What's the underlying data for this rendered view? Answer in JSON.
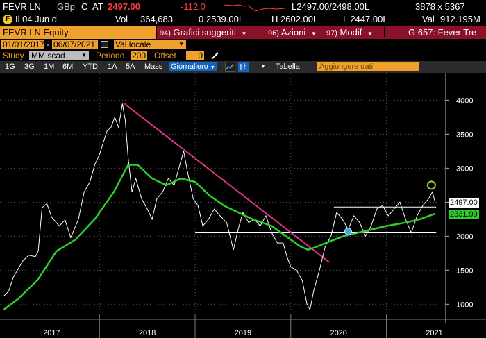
{
  "quote": {
    "ticker": "FEVR LN",
    "currency": "GBp",
    "flag": "C",
    "exchange": "AT",
    "last": "2497.00",
    "change": "-112.0",
    "bid_ask": "L2497.00/2498.00L",
    "size": "3878 x 5367",
    "open": "0 2539.00L",
    "high": "H 2602.00L",
    "low": "L 2447.00L",
    "flag_icon": "F",
    "info": "Il 04 Jun d",
    "volume_label": "Vol",
    "volume": "364,683",
    "val_label": "Val",
    "val": "912.195M"
  },
  "command": {
    "ticker_input": "FEVR LN Equity",
    "menu": [
      {
        "num": "94)",
        "label": "Grafici suggeriti"
      },
      {
        "num": "96)",
        "label": "Azioni"
      },
      {
        "num": "97)",
        "label": "Modif"
      },
      {
        "num": "",
        "label": "G 657: Fever Tre"
      }
    ]
  },
  "range": {
    "start": "01/01/2017",
    "end": "06/07/2021",
    "currency_select": "Val locale"
  },
  "study": {
    "label": "Study",
    "study_select": "MM scad",
    "period_label": "Periodo",
    "period_value": "200",
    "offset_label": "Offset",
    "offset_value": "0"
  },
  "toolbar": {
    "periods": [
      "1G",
      "3G",
      "1M",
      "6M",
      "YTD",
      "1A",
      "5A",
      "Mass"
    ],
    "frequency": "Giornaliero",
    "table_label": "Tabella",
    "add_data_placeholder": "Aggiungere dati"
  },
  "chart_data": {
    "type": "line",
    "y_ticks": [
      "4000",
      "3500",
      "3000",
      "2500",
      "2000",
      "1500",
      "1000"
    ],
    "x_ticks": [
      "2017",
      "2018",
      "2019",
      "2020",
      "2021"
    ],
    "ylim": [
      850,
      4300
    ],
    "last_price_label": "2497.00",
    "ma_label": "2331.99",
    "colors": {
      "price": "#ffffff",
      "ma": "#2dcf2d",
      "trendline": "#e0338c",
      "marker": "#9ad23a",
      "circle": "#4aa3df"
    },
    "price": [
      {
        "t": 2017.0,
        "v": 1120
      },
      {
        "t": 2017.05,
        "v": 1190
      },
      {
        "t": 2017.1,
        "v": 1400
      },
      {
        "t": 2017.15,
        "v": 1520
      },
      {
        "t": 2017.2,
        "v": 1640
      },
      {
        "t": 2017.26,
        "v": 1720
      },
      {
        "t": 2017.33,
        "v": 1700
      },
      {
        "t": 2017.36,
        "v": 1780
      },
      {
        "t": 2017.4,
        "v": 2420
      },
      {
        "t": 2017.45,
        "v": 2480
      },
      {
        "t": 2017.5,
        "v": 2280
      },
      {
        "t": 2017.58,
        "v": 2150
      },
      {
        "t": 2017.64,
        "v": 2240
      },
      {
        "t": 2017.7,
        "v": 1980
      },
      {
        "t": 2017.78,
        "v": 2250
      },
      {
        "t": 2017.84,
        "v": 2650
      },
      {
        "t": 2017.9,
        "v": 2800
      },
      {
        "t": 2017.95,
        "v": 3050
      },
      {
        "t": 2018.0,
        "v": 3200
      },
      {
        "t": 2018.04,
        "v": 3380
      },
      {
        "t": 2018.08,
        "v": 3550
      },
      {
        "t": 2018.12,
        "v": 3600
      },
      {
        "t": 2018.16,
        "v": 3750
      },
      {
        "t": 2018.2,
        "v": 3600
      },
      {
        "t": 2018.24,
        "v": 3950
      },
      {
        "t": 2018.27,
        "v": 3700
      },
      {
        "t": 2018.3,
        "v": 3150
      },
      {
        "t": 2018.34,
        "v": 2650
      },
      {
        "t": 2018.38,
        "v": 2850
      },
      {
        "t": 2018.44,
        "v": 2550
      },
      {
        "t": 2018.5,
        "v": 2400
      },
      {
        "t": 2018.55,
        "v": 2250
      },
      {
        "t": 2018.6,
        "v": 2550
      },
      {
        "t": 2018.66,
        "v": 2650
      },
      {
        "t": 2018.72,
        "v": 2850
      },
      {
        "t": 2018.78,
        "v": 2750
      },
      {
        "t": 2018.84,
        "v": 3050
      },
      {
        "t": 2018.88,
        "v": 3250
      },
      {
        "t": 2018.92,
        "v": 2950
      },
      {
        "t": 2018.98,
        "v": 2550
      },
      {
        "t": 2019.03,
        "v": 2450
      },
      {
        "t": 2019.08,
        "v": 2150
      },
      {
        "t": 2019.14,
        "v": 2250
      },
      {
        "t": 2019.2,
        "v": 2400
      },
      {
        "t": 2019.26,
        "v": 2300
      },
      {
        "t": 2019.33,
        "v": 2200
      },
      {
        "t": 2019.4,
        "v": 1800
      },
      {
        "t": 2019.45,
        "v": 2100
      },
      {
        "t": 2019.5,
        "v": 2350
      },
      {
        "t": 2019.56,
        "v": 2200
      },
      {
        "t": 2019.62,
        "v": 2250
      },
      {
        "t": 2019.68,
        "v": 2150
      },
      {
        "t": 2019.74,
        "v": 2300
      },
      {
        "t": 2019.8,
        "v": 2050
      },
      {
        "t": 2019.86,
        "v": 1900
      },
      {
        "t": 2019.92,
        "v": 1900
      },
      {
        "t": 2019.96,
        "v": 1700
      },
      {
        "t": 2020.0,
        "v": 1550
      },
      {
        "t": 2020.06,
        "v": 1500
      },
      {
        "t": 2020.12,
        "v": 1350
      },
      {
        "t": 2020.17,
        "v": 1000
      },
      {
        "t": 2020.2,
        "v": 920
      },
      {
        "t": 2020.24,
        "v": 1200
      },
      {
        "t": 2020.3,
        "v": 1500
      },
      {
        "t": 2020.36,
        "v": 1850
      },
      {
        "t": 2020.42,
        "v": 2000
      },
      {
        "t": 2020.48,
        "v": 2350
      },
      {
        "t": 2020.54,
        "v": 2250
      },
      {
        "t": 2020.6,
        "v": 2100
      },
      {
        "t": 2020.66,
        "v": 2300
      },
      {
        "t": 2020.72,
        "v": 2200
      },
      {
        "t": 2020.78,
        "v": 2000
      },
      {
        "t": 2020.84,
        "v": 2150
      },
      {
        "t": 2020.9,
        "v": 2400
      },
      {
        "t": 2020.96,
        "v": 2450
      },
      {
        "t": 2021.02,
        "v": 2300
      },
      {
        "t": 2021.08,
        "v": 2400
      },
      {
        "t": 2021.14,
        "v": 2500
      },
      {
        "t": 2021.2,
        "v": 2250
      },
      {
        "t": 2021.26,
        "v": 2050
      },
      {
        "t": 2021.32,
        "v": 2300
      },
      {
        "t": 2021.38,
        "v": 2450
      },
      {
        "t": 2021.44,
        "v": 2550
      },
      {
        "t": 2021.48,
        "v": 2650
      },
      {
        "t": 2021.51,
        "v": 2497
      }
    ],
    "ma": [
      {
        "t": 2017.0,
        "v": 920
      },
      {
        "t": 2017.15,
        "v": 1080
      },
      {
        "t": 2017.35,
        "v": 1350
      },
      {
        "t": 2017.55,
        "v": 1780
      },
      {
        "t": 2017.75,
        "v": 1950
      },
      {
        "t": 2017.95,
        "v": 2250
      },
      {
        "t": 2018.15,
        "v": 2650
      },
      {
        "t": 2018.3,
        "v": 3050
      },
      {
        "t": 2018.4,
        "v": 3050
      },
      {
        "t": 2018.55,
        "v": 2850
      },
      {
        "t": 2018.7,
        "v": 2750
      },
      {
        "t": 2018.85,
        "v": 2850
      },
      {
        "t": 2019.0,
        "v": 2800
      },
      {
        "t": 2019.15,
        "v": 2600
      },
      {
        "t": 2019.3,
        "v": 2450
      },
      {
        "t": 2019.45,
        "v": 2350
      },
      {
        "t": 2019.6,
        "v": 2250
      },
      {
        "t": 2019.8,
        "v": 2150
      },
      {
        "t": 2019.95,
        "v": 2000
      },
      {
        "t": 2020.1,
        "v": 1850
      },
      {
        "t": 2020.18,
        "v": 1800
      },
      {
        "t": 2020.28,
        "v": 1850
      },
      {
        "t": 2020.4,
        "v": 1920
      },
      {
        "t": 2020.55,
        "v": 2000
      },
      {
        "t": 2020.7,
        "v": 2050
      },
      {
        "t": 2020.85,
        "v": 2100
      },
      {
        "t": 2021.0,
        "v": 2150
      },
      {
        "t": 2021.2,
        "v": 2200
      },
      {
        "t": 2021.35,
        "v": 2250
      },
      {
        "t": 2021.51,
        "v": 2332
      }
    ],
    "trendline": [
      {
        "t": 2018.26,
        "v": 3950
      },
      {
        "t": 2020.4,
        "v": 1620
      }
    ],
    "hlines": [
      {
        "from": 2020.45,
        "to": 2021.52,
        "v": 2430
      },
      {
        "from": 2019.0,
        "to": 2021.52,
        "v": 2060
      }
    ],
    "circle_marker": {
      "t": 2020.6,
      "v": 2070
    },
    "green_marker": {
      "t": 2021.47,
      "v": 2750
    }
  }
}
